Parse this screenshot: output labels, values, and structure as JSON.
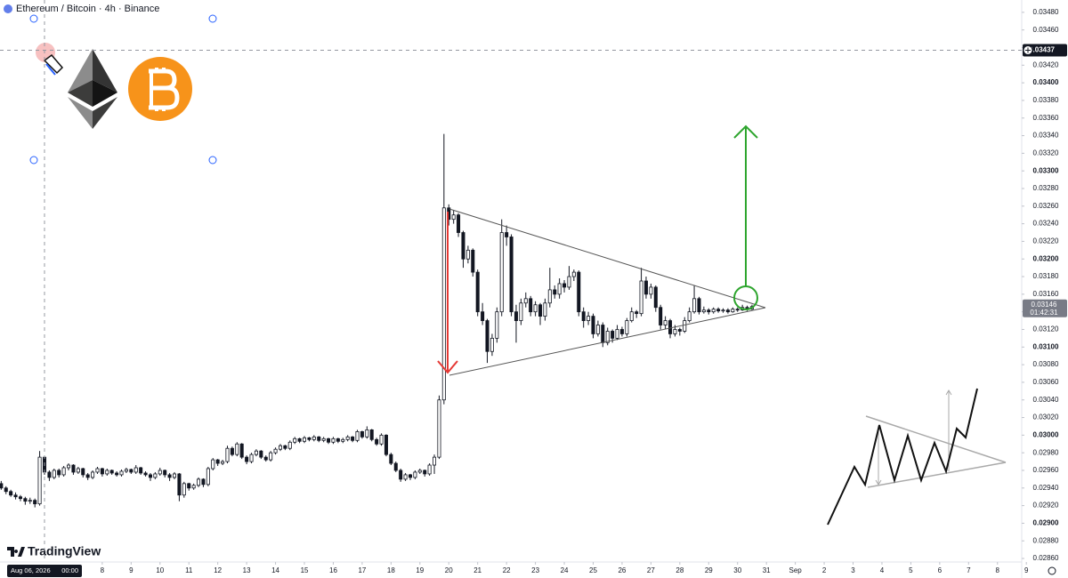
{
  "chart_data": {
    "type": "candlestick",
    "title": "Ethereum / Bitcoin · 4h · Binance",
    "brand": "TradingView",
    "up_color": "#ffffff",
    "down_color": "#131722",
    "wick_color": "#131722",
    "grid": false,
    "xlim": [
      4.459,
      39.84
    ],
    "ylim": [
      0.02856,
      0.03494
    ],
    "xticks": [
      8,
      9,
      10,
      11,
      12,
      13,
      14,
      15,
      16,
      17,
      18,
      19,
      20,
      21,
      22,
      23,
      24,
      25,
      26,
      27,
      28,
      29,
      30,
      31,
      {
        "value": 32,
        "label": "Sep"
      },
      {
        "value": 33,
        "label": "2"
      },
      {
        "value": 34,
        "label": "3"
      },
      {
        "value": 35,
        "label": "4"
      },
      {
        "value": 36,
        "label": "5"
      },
      {
        "value": 37,
        "label": "6"
      },
      {
        "value": 38,
        "label": "7"
      },
      {
        "value": 39,
        "label": "8"
      },
      {
        "value": 40,
        "label": "9"
      }
    ],
    "yticks": [
      {
        "value": 0.0348,
        "label": "0.03480"
      },
      {
        "value": 0.0346,
        "label": "0.03460"
      },
      {
        "value": 0.0344,
        "label": "0.03440"
      },
      {
        "value": 0.0342,
        "label": "0.03420"
      },
      {
        "value": 0.034,
        "label": "0.03400"
      },
      {
        "value": 0.0338,
        "label": "0.03380"
      },
      {
        "value": 0.0336,
        "label": "0.03360"
      },
      {
        "value": 0.0334,
        "label": "0.03340"
      },
      {
        "value": 0.0332,
        "label": "0.03320"
      },
      {
        "value": 0.033,
        "label": "0.03300"
      },
      {
        "value": 0.0328,
        "label": "0.03280"
      },
      {
        "value": 0.0326,
        "label": "0.03260"
      },
      {
        "value": 0.0324,
        "label": "0.03240"
      },
      {
        "value": 0.0322,
        "label": "0.03220"
      },
      {
        "value": 0.032,
        "label": "0.03200"
      },
      {
        "value": 0.0318,
        "label": "0.03180"
      },
      {
        "value": 0.0316,
        "label": "0.03160"
      },
      {
        "value": 0.0314,
        "label": "0.03140"
      },
      {
        "value": 0.0312,
        "label": "0.03120"
      },
      {
        "value": 0.031,
        "label": "0.03100"
      },
      {
        "value": 0.0308,
        "label": "0.03080"
      },
      {
        "value": 0.0306,
        "label": "0.03060"
      },
      {
        "value": 0.0304,
        "label": "0.03040"
      },
      {
        "value": 0.0302,
        "label": "0.03020"
      },
      {
        "value": 0.03,
        "label": "0.03000"
      },
      {
        "value": 0.0298,
        "label": "0.02980"
      },
      {
        "value": 0.0296,
        "label": "0.02960"
      },
      {
        "value": 0.0294,
        "label": "0.02940"
      },
      {
        "value": 0.0292,
        "label": "0.02920"
      },
      {
        "value": 0.029,
        "label": "0.02900"
      },
      {
        "value": 0.0288,
        "label": "0.02880"
      },
      {
        "value": 0.0286,
        "label": "0.02860"
      }
    ],
    "crosshair": {
      "x": {
        "value": 6,
        "label": "Aug 06, 2026",
        "time": "00:00"
      },
      "y": {
        "value": 0.03437,
        "label": "0.03437"
      }
    },
    "last_price": {
      "value": 0.03146,
      "countdown": "01:42:31"
    },
    "x": [
      4.5,
      4.667,
      4.833,
      5,
      5.167,
      5.333,
      5.5,
      5.667,
      5.833,
      6,
      6.167,
      6.333,
      6.5,
      6.667,
      6.833,
      7,
      7.167,
      7.333,
      7.5,
      7.667,
      7.833,
      8,
      8.167,
      8.333,
      8.5,
      8.667,
      8.833,
      9,
      9.167,
      9.333,
      9.5,
      9.667,
      9.833,
      10,
      10.167,
      10.333,
      10.5,
      10.667,
      10.833,
      11,
      11.167,
      11.333,
      11.5,
      11.667,
      11.833,
      12,
      12.167,
      12.333,
      12.5,
      12.667,
      12.833,
      13,
      13.167,
      13.333,
      13.5,
      13.667,
      13.833,
      14,
      14.167,
      14.333,
      14.5,
      14.667,
      14.833,
      15,
      15.167,
      15.333,
      15.5,
      15.667,
      15.833,
      16,
      16.167,
      16.333,
      16.5,
      16.667,
      16.833,
      17,
      17.167,
      17.333,
      17.5,
      17.667,
      17.833,
      18,
      18.167,
      18.333,
      18.5,
      18.667,
      18.833,
      19,
      19.167,
      19.333,
      19.5,
      19.667,
      19.833,
      20,
      20.167,
      20.333,
      20.5,
      20.667,
      20.833,
      21,
      21.167,
      21.333,
      21.5,
      21.667,
      21.833,
      22,
      22.167,
      22.333,
      22.5,
      22.667,
      22.833,
      23,
      23.167,
      23.333,
      23.5,
      23.667,
      23.833,
      24,
      24.167,
      24.333,
      24.5,
      24.667,
      24.833,
      25,
      25.167,
      25.333,
      25.5,
      25.667,
      25.833,
      26,
      26.167,
      26.333,
      26.5,
      26.667,
      26.833,
      27,
      27.167,
      27.333,
      27.5,
      27.667,
      27.833,
      28,
      28.167,
      28.333,
      28.5,
      28.667,
      28.833,
      29,
      29.167,
      29.333,
      29.5,
      29.667,
      29.833,
      30,
      30.167,
      30.333,
      30.5
    ],
    "ohlc": [
      [
        0.02945,
        0.02948,
        0.02938,
        0.0294
      ],
      [
        0.0294,
        0.02942,
        0.02933,
        0.02936
      ],
      [
        0.02936,
        0.02938,
        0.0293,
        0.02932
      ],
      [
        0.02932,
        0.02935,
        0.02927,
        0.0293
      ],
      [
        0.0293,
        0.02932,
        0.02925,
        0.02928
      ],
      [
        0.02928,
        0.0293,
        0.02921,
        0.02925
      ],
      [
        0.02925,
        0.02929,
        0.02922,
        0.02926
      ],
      [
        0.02926,
        0.02928,
        0.02918,
        0.02922
      ],
      [
        0.02922,
        0.02982,
        0.0292,
        0.02975
      ],
      [
        0.02975,
        0.02977,
        0.02955,
        0.02958
      ],
      [
        0.02958,
        0.0296,
        0.02948,
        0.02952
      ],
      [
        0.02952,
        0.02962,
        0.0295,
        0.0296
      ],
      [
        0.0296,
        0.02962,
        0.02952,
        0.02955
      ],
      [
        0.02955,
        0.02965,
        0.02953,
        0.02963
      ],
      [
        0.02963,
        0.02968,
        0.0296,
        0.02966
      ],
      [
        0.02966,
        0.02967,
        0.02955,
        0.02958
      ],
      [
        0.02958,
        0.02964,
        0.02956,
        0.02962
      ],
      [
        0.02962,
        0.02963,
        0.02952,
        0.02955
      ],
      [
        0.02955,
        0.02957,
        0.02949,
        0.02952
      ],
      [
        0.02952,
        0.0296,
        0.0295,
        0.02958
      ],
      [
        0.02958,
        0.02964,
        0.02956,
        0.02962
      ],
      [
        0.02962,
        0.02963,
        0.02953,
        0.02956
      ],
      [
        0.02956,
        0.02962,
        0.02954,
        0.0296
      ],
      [
        0.0296,
        0.02961,
        0.02955,
        0.02957
      ],
      [
        0.02957,
        0.02959,
        0.02953,
        0.02955
      ],
      [
        0.02955,
        0.02961,
        0.02953,
        0.02959
      ],
      [
        0.02959,
        0.02963,
        0.02957,
        0.02961
      ],
      [
        0.02961,
        0.02962,
        0.02956,
        0.02958
      ],
      [
        0.02958,
        0.02966,
        0.02956,
        0.02963
      ],
      [
        0.02963,
        0.02964,
        0.02955,
        0.02957
      ],
      [
        0.02957,
        0.02959,
        0.02953,
        0.02955
      ],
      [
        0.02955,
        0.02957,
        0.02948,
        0.02952
      ],
      [
        0.02952,
        0.02958,
        0.0295,
        0.02956
      ],
      [
        0.02956,
        0.02963,
        0.02954,
        0.0296
      ],
      [
        0.0296,
        0.02961,
        0.02952,
        0.02955
      ],
      [
        0.02955,
        0.02957,
        0.02948,
        0.02952
      ],
      [
        0.02952,
        0.02958,
        0.0295,
        0.02956
      ],
      [
        0.02956,
        0.02957,
        0.02925,
        0.02932
      ],
      [
        0.02932,
        0.02947,
        0.02929,
        0.02945
      ],
      [
        0.02945,
        0.02946,
        0.02937,
        0.0294
      ],
      [
        0.0294,
        0.02945,
        0.02938,
        0.02943
      ],
      [
        0.02943,
        0.02952,
        0.02941,
        0.0295
      ],
      [
        0.0295,
        0.02951,
        0.02941,
        0.02944
      ],
      [
        0.02944,
        0.02964,
        0.02942,
        0.02962
      ],
      [
        0.02962,
        0.02974,
        0.0296,
        0.02972
      ],
      [
        0.02972,
        0.02973,
        0.02965,
        0.02968
      ],
      [
        0.02968,
        0.02972,
        0.02966,
        0.0297
      ],
      [
        0.0297,
        0.02988,
        0.02968,
        0.02985
      ],
      [
        0.02985,
        0.02987,
        0.02976,
        0.02978
      ],
      [
        0.02978,
        0.02992,
        0.02976,
        0.0299
      ],
      [
        0.0299,
        0.02991,
        0.02973,
        0.02975
      ],
      [
        0.02975,
        0.02977,
        0.02967,
        0.0297
      ],
      [
        0.0297,
        0.0298,
        0.02968,
        0.02978
      ],
      [
        0.02978,
        0.02984,
        0.02976,
        0.02982
      ],
      [
        0.02982,
        0.02983,
        0.02973,
        0.02975
      ],
      [
        0.02975,
        0.02977,
        0.0297,
        0.02972
      ],
      [
        0.02972,
        0.02982,
        0.0297,
        0.0298
      ],
      [
        0.0298,
        0.02986,
        0.02978,
        0.02984
      ],
      [
        0.02984,
        0.0299,
        0.02982,
        0.02988
      ],
      [
        0.02988,
        0.02989,
        0.02983,
        0.02985
      ],
      [
        0.02985,
        0.02994,
        0.02983,
        0.02992
      ],
      [
        0.02992,
        0.02998,
        0.0299,
        0.02996
      ],
      [
        0.02996,
        0.02997,
        0.02991,
        0.02993
      ],
      [
        0.02993,
        0.02999,
        0.02991,
        0.02997
      ],
      [
        0.02997,
        0.02998,
        0.02993,
        0.02995
      ],
      [
        0.02995,
        0.03,
        0.02993,
        0.02998
      ],
      [
        0.02998,
        0.02999,
        0.02992,
        0.02994
      ],
      [
        0.02994,
        0.02998,
        0.02992,
        0.02996
      ],
      [
        0.02996,
        0.02997,
        0.0299,
        0.02992
      ],
      [
        0.02992,
        0.02998,
        0.0299,
        0.02996
      ],
      [
        0.02996,
        0.02997,
        0.02991,
        0.02993
      ],
      [
        0.02993,
        0.02997,
        0.02991,
        0.02995
      ],
      [
        0.02995,
        0.03,
        0.02993,
        0.02998
      ],
      [
        0.02998,
        0.02999,
        0.02992,
        0.02994
      ],
      [
        0.02994,
        0.03006,
        0.02992,
        0.03004
      ],
      [
        0.03004,
        0.03005,
        0.02996,
        0.02998
      ],
      [
        0.02998,
        0.0301,
        0.02996,
        0.03006
      ],
      [
        0.03006,
        0.03007,
        0.02993,
        0.02995
      ],
      [
        0.02995,
        0.02997,
        0.02988,
        0.0299
      ],
      [
        0.0299,
        0.03002,
        0.02988,
        0.03
      ],
      [
        0.03,
        0.03001,
        0.02976,
        0.02978
      ],
      [
        0.02978,
        0.0298,
        0.02966,
        0.02968
      ],
      [
        0.02968,
        0.0297,
        0.02958,
        0.0296
      ],
      [
        0.0296,
        0.02962,
        0.02947,
        0.0295
      ],
      [
        0.0295,
        0.02957,
        0.02948,
        0.02955
      ],
      [
        0.02955,
        0.02956,
        0.02949,
        0.02952
      ],
      [
        0.02952,
        0.0296,
        0.0295,
        0.02958
      ],
      [
        0.02958,
        0.02962,
        0.02956,
        0.0296
      ],
      [
        0.0296,
        0.02961,
        0.02953,
        0.02956
      ],
      [
        0.02956,
        0.02968,
        0.02954,
        0.02966
      ],
      [
        0.02966,
        0.02978,
        0.02956,
        0.02975
      ],
      [
        0.02975,
        0.03045,
        0.02973,
        0.0304
      ],
      [
        0.0304,
        0.03342,
        0.03035,
        0.03258
      ],
      [
        0.03258,
        0.03262,
        0.03238,
        0.03245
      ],
      [
        0.03245,
        0.03255,
        0.0324,
        0.0325
      ],
      [
        0.0325,
        0.03252,
        0.03225,
        0.0323
      ],
      [
        0.0323,
        0.03232,
        0.0319,
        0.032
      ],
      [
        0.032,
        0.03215,
        0.03195,
        0.0321
      ],
      [
        0.0321,
        0.03212,
        0.0318,
        0.03185
      ],
      [
        0.03185,
        0.03188,
        0.03135,
        0.0314
      ],
      [
        0.0314,
        0.0315,
        0.03125,
        0.0313
      ],
      [
        0.0313,
        0.03132,
        0.03082,
        0.03095
      ],
      [
        0.03095,
        0.03115,
        0.0309,
        0.0311
      ],
      [
        0.0311,
        0.03145,
        0.03105,
        0.0314
      ],
      [
        0.0314,
        0.03245,
        0.03135,
        0.0323
      ],
      [
        0.0323,
        0.03238,
        0.03215,
        0.03225
      ],
      [
        0.03225,
        0.03228,
        0.03135,
        0.0314
      ],
      [
        0.0314,
        0.03148,
        0.03105,
        0.0313
      ],
      [
        0.0313,
        0.03155,
        0.03125,
        0.0315
      ],
      [
        0.0315,
        0.03162,
        0.03145,
        0.03155
      ],
      [
        0.03155,
        0.03158,
        0.03135,
        0.0314
      ],
      [
        0.0314,
        0.03152,
        0.03135,
        0.03148
      ],
      [
        0.03148,
        0.0315,
        0.03125,
        0.03135
      ],
      [
        0.03135,
        0.03155,
        0.0313,
        0.0315
      ],
      [
        0.0315,
        0.0319,
        0.03145,
        0.03165
      ],
      [
        0.03165,
        0.0317,
        0.03155,
        0.0316
      ],
      [
        0.0316,
        0.03178,
        0.03155,
        0.03172
      ],
      [
        0.03172,
        0.03176,
        0.03162,
        0.03168
      ],
      [
        0.03168,
        0.03192,
        0.03165,
        0.0318
      ],
      [
        0.0318,
        0.03188,
        0.03175,
        0.03185
      ],
      [
        0.03185,
        0.03187,
        0.03135,
        0.0314
      ],
      [
        0.0314,
        0.03145,
        0.03122,
        0.0313
      ],
      [
        0.0313,
        0.0314,
        0.03125,
        0.03135
      ],
      [
        0.03135,
        0.03138,
        0.0311,
        0.03115
      ],
      [
        0.03115,
        0.0313,
        0.03112,
        0.03125
      ],
      [
        0.03125,
        0.03128,
        0.031,
        0.03105
      ],
      [
        0.03105,
        0.03122,
        0.03102,
        0.03118
      ],
      [
        0.03118,
        0.0312,
        0.03105,
        0.0311
      ],
      [
        0.0311,
        0.03125,
        0.03108,
        0.0312
      ],
      [
        0.0312,
        0.03123,
        0.03112,
        0.03115
      ],
      [
        0.03115,
        0.03133,
        0.03112,
        0.0313
      ],
      [
        0.0313,
        0.03145,
        0.03128,
        0.0314
      ],
      [
        0.0314,
        0.03142,
        0.03133,
        0.03138
      ],
      [
        0.03138,
        0.0319,
        0.03135,
        0.03175
      ],
      [
        0.03175,
        0.0318,
        0.03155,
        0.0316
      ],
      [
        0.0316,
        0.03172,
        0.03155,
        0.03168
      ],
      [
        0.03168,
        0.0317,
        0.0314,
        0.03145
      ],
      [
        0.03145,
        0.03148,
        0.0312,
        0.03125
      ],
      [
        0.03125,
        0.03135,
        0.0312,
        0.0313
      ],
      [
        0.0313,
        0.03132,
        0.0311,
        0.03115
      ],
      [
        0.03115,
        0.03125,
        0.03112,
        0.0312
      ],
      [
        0.0312,
        0.03122,
        0.03113,
        0.03118
      ],
      [
        0.03118,
        0.03134,
        0.03116,
        0.0313
      ],
      [
        0.0313,
        0.03145,
        0.03128,
        0.0314
      ],
      [
        0.0314,
        0.0317,
        0.03138,
        0.03155
      ],
      [
        0.03155,
        0.03157,
        0.03137,
        0.0314
      ],
      [
        0.0314,
        0.03146,
        0.03138,
        0.03142
      ],
      [
        0.03142,
        0.03144,
        0.03137,
        0.0314
      ],
      [
        0.0314,
        0.03145,
        0.03138,
        0.03143
      ],
      [
        0.03143,
        0.03145,
        0.03139,
        0.03141
      ],
      [
        0.03141,
        0.03144,
        0.03139,
        0.03142
      ],
      [
        0.03142,
        0.03144,
        0.03138,
        0.0314
      ],
      [
        0.0314,
        0.03145,
        0.03139,
        0.03143
      ],
      [
        0.03143,
        0.03145,
        0.0314,
        0.03142
      ],
      [
        0.03142,
        0.03148,
        0.03141,
        0.03145
      ],
      [
        0.03145,
        0.03147,
        0.03141,
        0.03143
      ],
      [
        0.03143,
        0.03148,
        0.03142,
        0.03146
      ]
    ]
  }
}
